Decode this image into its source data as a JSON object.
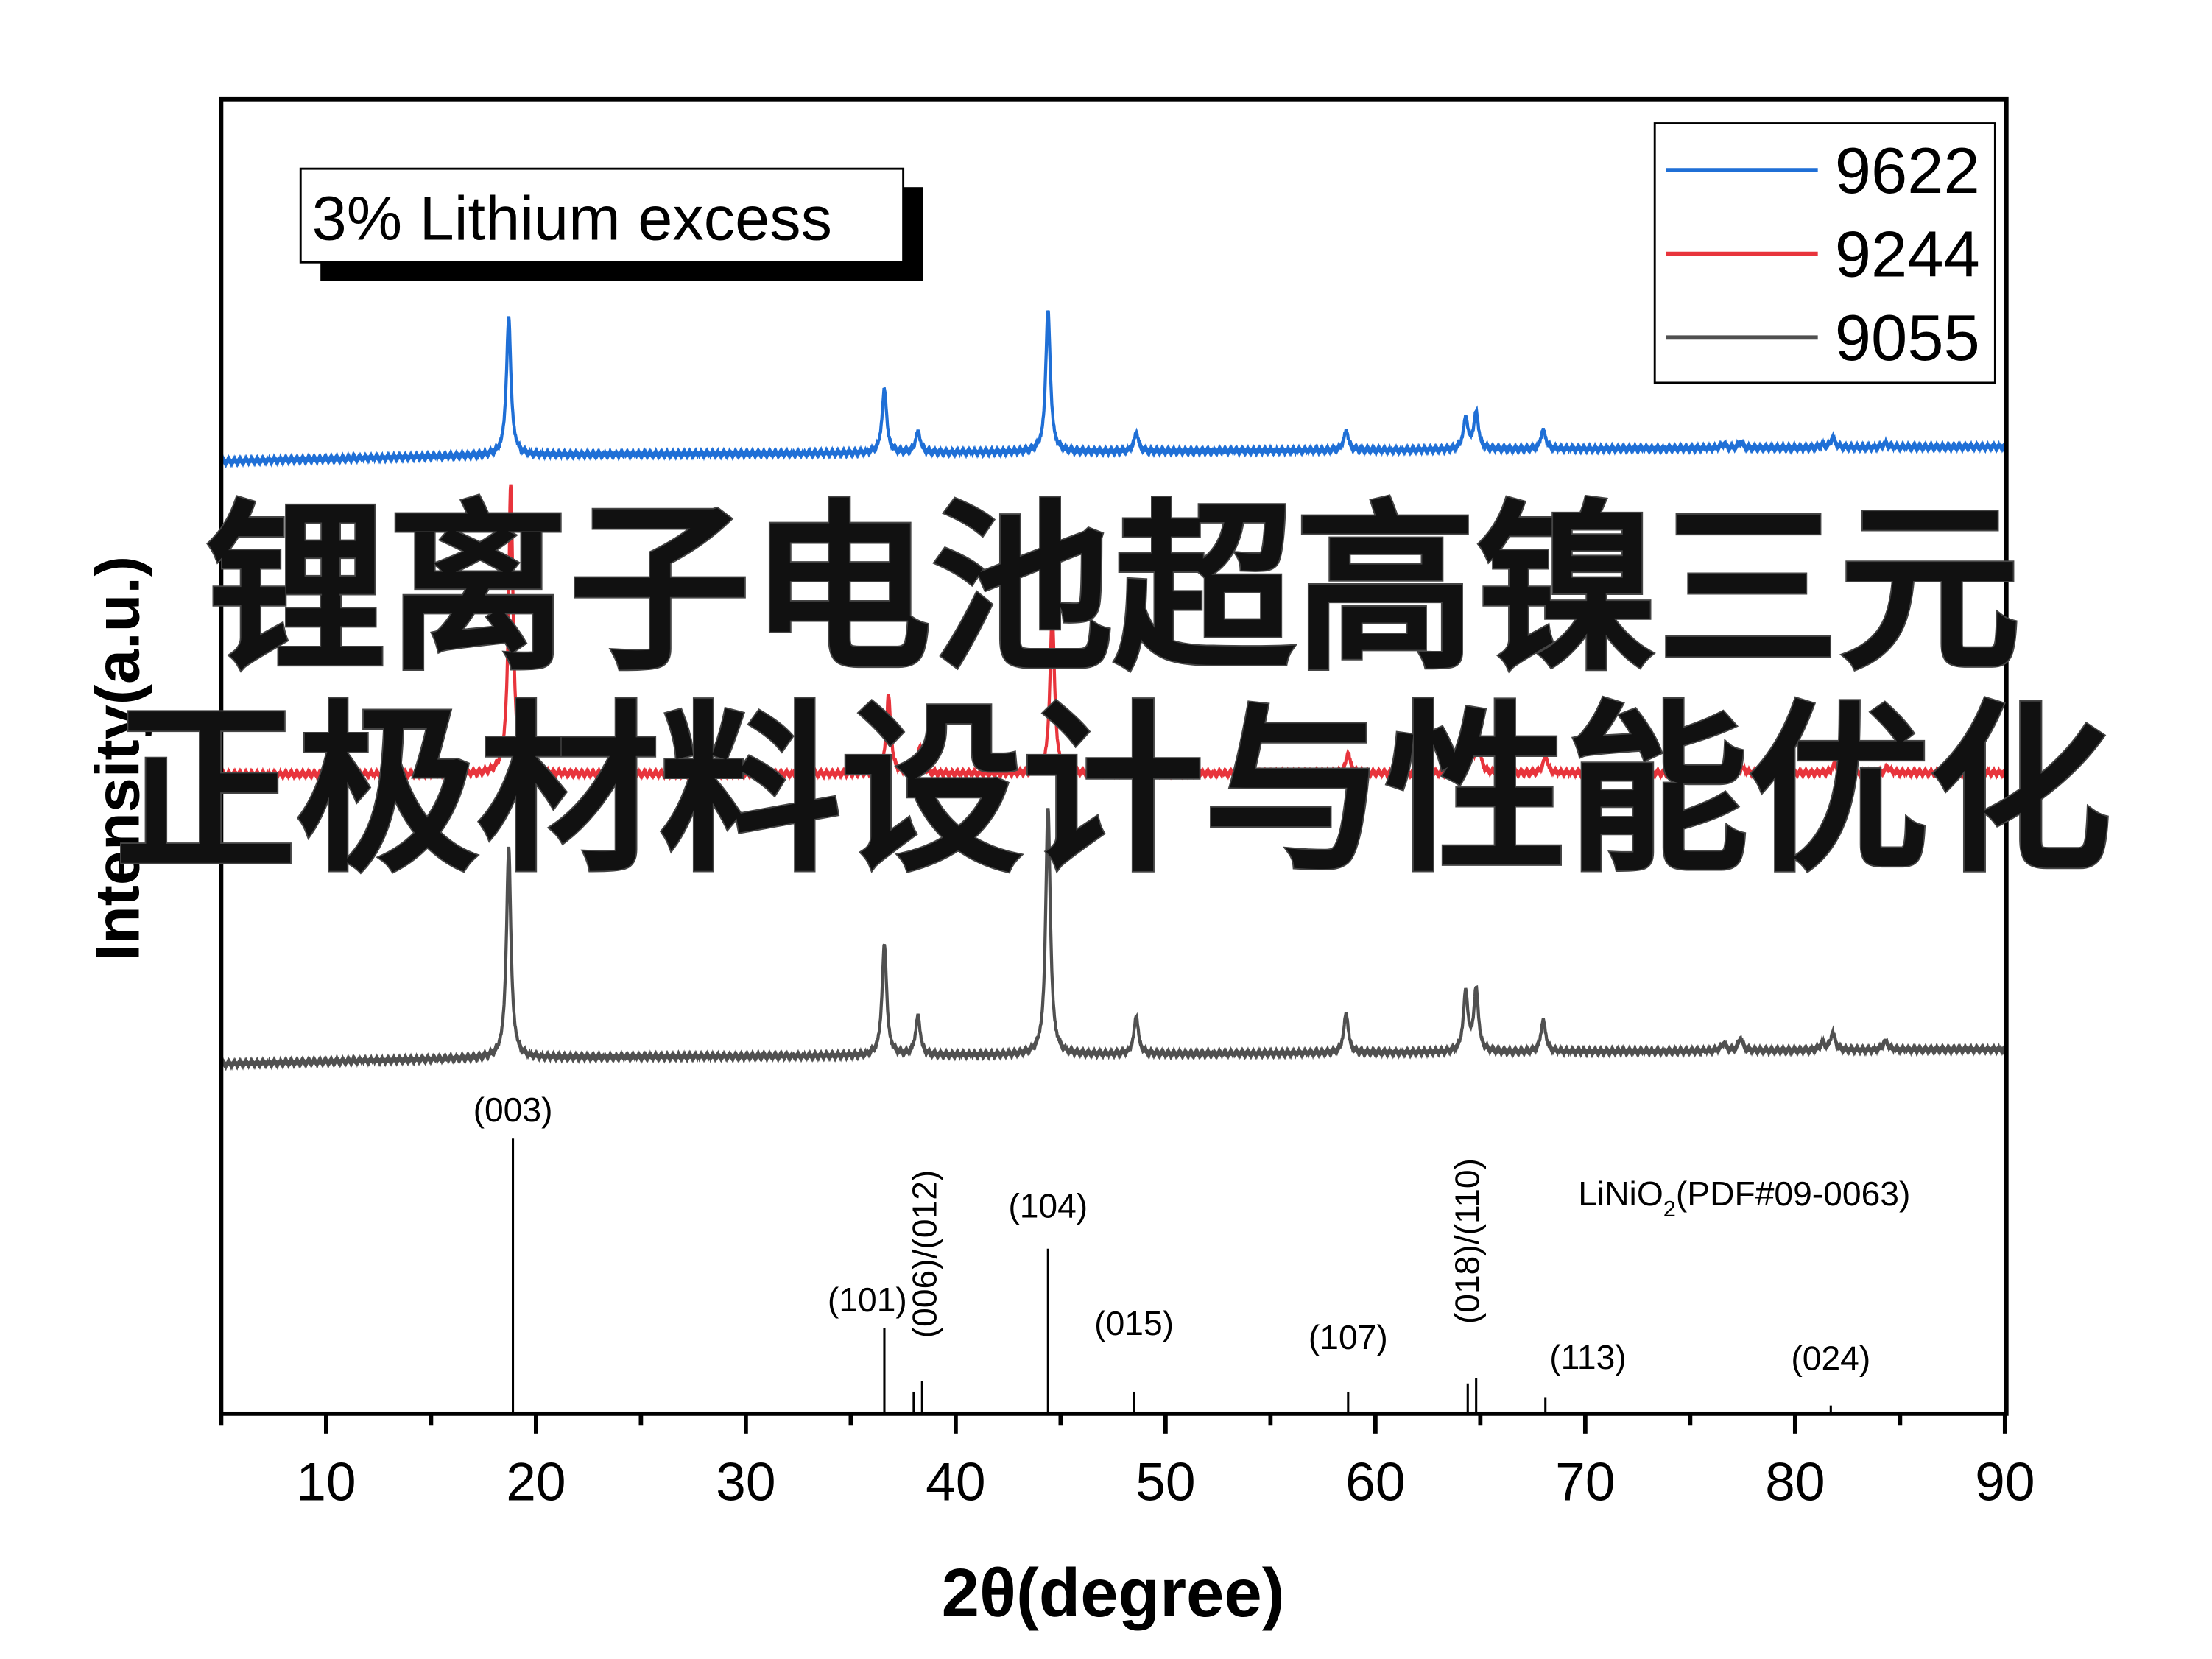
{
  "overlay": {
    "line1": "锂离子电池超高镍三元",
    "line2": "正极材料设计与性能优化"
  },
  "chart_data": {
    "type": "line",
    "xlabel": "2θ(degree)",
    "ylabel": "Intensity(a.u.)",
    "xlim": [
      5,
      90
    ],
    "xticks": [
      10,
      20,
      30,
      40,
      50,
      60,
      70,
      80,
      90
    ],
    "grid": false,
    "legend_position": "top-right",
    "annotation": "3% Lithium excess",
    "series": [
      {
        "name": "9622",
        "color": "#1f6fd6",
        "peaks": [
          [
            18.7,
            97
          ],
          [
            36.6,
            45
          ],
          [
            38.2,
            15
          ],
          [
            44.4,
            100
          ],
          [
            48.6,
            13
          ],
          [
            58.6,
            14
          ],
          [
            64.3,
            22
          ],
          [
            64.8,
            26
          ],
          [
            68.0,
            14
          ],
          [
            76.6,
            3
          ],
          [
            77.4,
            4
          ],
          [
            81.3,
            2
          ],
          [
            81.8,
            7
          ],
          [
            84.3,
            3
          ]
        ]
      },
      {
        "name": "9244",
        "color": "#e8343c",
        "peaks": [
          [
            18.8,
            100
          ],
          [
            36.8,
            27
          ],
          [
            38.3,
            9
          ],
          [
            44.6,
            55
          ],
          [
            48.7,
            6
          ],
          [
            58.7,
            7
          ],
          [
            64.5,
            10
          ],
          [
            64.9,
            11
          ],
          [
            68.1,
            6
          ],
          [
            77.5,
            2
          ],
          [
            81.9,
            3
          ],
          [
            84.4,
            2
          ]
        ]
      },
      {
        "name": "9055",
        "color": "#505050",
        "peaks": [
          [
            18.7,
            85
          ],
          [
            36.6,
            45
          ],
          [
            38.2,
            16
          ],
          [
            44.4,
            100
          ],
          [
            48.6,
            15
          ],
          [
            58.6,
            16
          ],
          [
            64.3,
            24
          ],
          [
            64.8,
            25
          ],
          [
            68.0,
            13
          ],
          [
            76.6,
            3
          ],
          [
            77.4,
            5
          ],
          [
            81.3,
            3
          ],
          [
            81.8,
            7
          ],
          [
            84.3,
            4
          ]
        ]
      }
    ],
    "reference": {
      "label": "LiNiO",
      "label_sub": "2",
      "label_rest": "(PDF#09-0063)",
      "sticks": [
        {
          "x": 18.9,
          "h": 100,
          "label": "(003)"
        },
        {
          "x": 36.6,
          "h": 31,
          "label": "(101)"
        },
        {
          "x": 38.0,
          "h": 8,
          "label": ""
        },
        {
          "x": 38.4,
          "h": 12,
          "label": "(006)/(012)"
        },
        {
          "x": 44.4,
          "h": 60,
          "label": "(104)"
        },
        {
          "x": 48.5,
          "h": 8,
          "label": "(015)"
        },
        {
          "x": 58.7,
          "h": 8,
          "label": "(107)"
        },
        {
          "x": 64.4,
          "h": 11,
          "label": ""
        },
        {
          "x": 64.8,
          "h": 13,
          "label": "(018)/(110)"
        },
        {
          "x": 68.1,
          "h": 6,
          "label": "(113)"
        },
        {
          "x": 81.7,
          "h": 3,
          "label": "(024)"
        }
      ]
    }
  }
}
